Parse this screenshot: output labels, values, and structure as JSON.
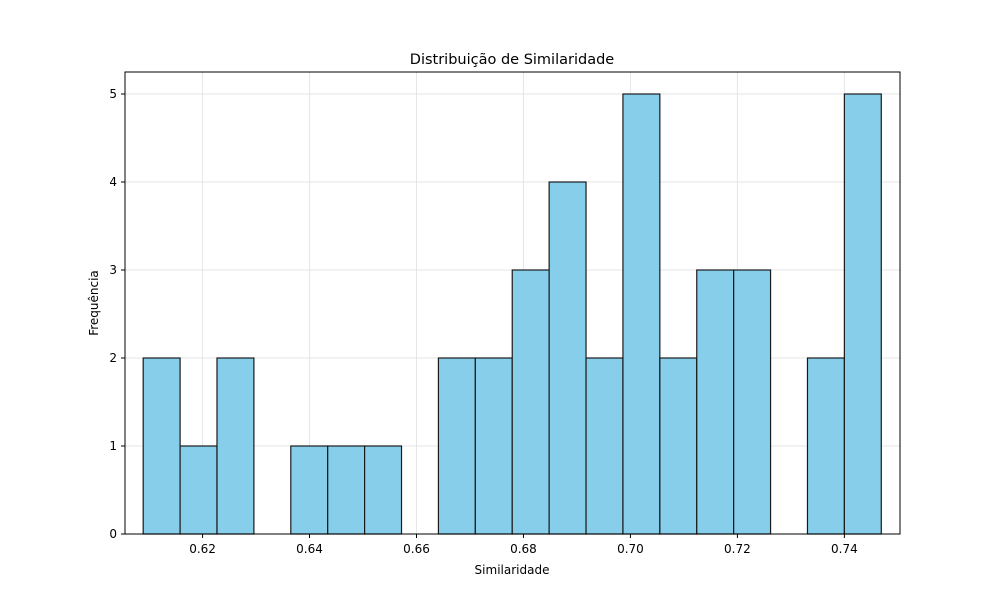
{
  "chart_data": {
    "type": "bar",
    "title": "Distribuição de Similaridade",
    "xlabel": "Similaridade",
    "ylabel": "Frequência",
    "bins": [
      {
        "x0": 0.6089,
        "x1": 0.6158,
        "count": 2
      },
      {
        "x0": 0.6158,
        "x1": 0.6227,
        "count": 1
      },
      {
        "x0": 0.6227,
        "x1": 0.6296,
        "count": 2
      },
      {
        "x0": 0.6296,
        "x1": 0.6365,
        "count": 0
      },
      {
        "x0": 0.6365,
        "x1": 0.6434,
        "count": 1
      },
      {
        "x0": 0.6434,
        "x1": 0.6503,
        "count": 1
      },
      {
        "x0": 0.6503,
        "x1": 0.6572,
        "count": 1
      },
      {
        "x0": 0.6572,
        "x1": 0.6641,
        "count": 0
      },
      {
        "x0": 0.6641,
        "x1": 0.671,
        "count": 2
      },
      {
        "x0": 0.671,
        "x1": 0.6779,
        "count": 2
      },
      {
        "x0": 0.6779,
        "x1": 0.6848,
        "count": 3
      },
      {
        "x0": 0.6848,
        "x1": 0.6917,
        "count": 4
      },
      {
        "x0": 0.6917,
        "x1": 0.6986,
        "count": 2
      },
      {
        "x0": 0.6986,
        "x1": 0.7055,
        "count": 5
      },
      {
        "x0": 0.7055,
        "x1": 0.7124,
        "count": 2
      },
      {
        "x0": 0.7124,
        "x1": 0.7193,
        "count": 3
      },
      {
        "x0": 0.7193,
        "x1": 0.7262,
        "count": 3
      },
      {
        "x0": 0.7262,
        "x1": 0.7331,
        "count": 0
      },
      {
        "x0": 0.7331,
        "x1": 0.74,
        "count": 2
      },
      {
        "x0": 0.74,
        "x1": 0.7469,
        "count": 5
      }
    ],
    "xticks": [
      "0.62",
      "0.64",
      "0.66",
      "0.68",
      "0.70",
      "0.72",
      "0.74"
    ],
    "yticks": [
      "0",
      "1",
      "2",
      "3",
      "4",
      "5"
    ],
    "xlim": [
      0.6055,
      0.7504
    ],
    "ylim": [
      0,
      5.25
    ],
    "grid": true,
    "colors": {
      "bar_fill": "#87ceeb",
      "bar_edge": "#1a1a1a",
      "grid": "#e6e6e6",
      "axis": "#000000"
    }
  }
}
